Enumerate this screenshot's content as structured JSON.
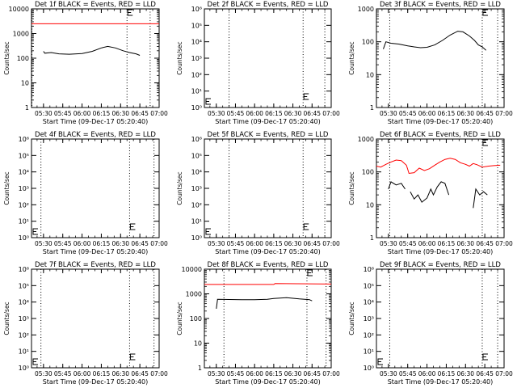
{
  "chart_data": [
    {
      "type": "line",
      "title": "Det 1f BLACK = Events, RED = LLD",
      "xlabel": "Start Time (09-Dec-17 05:20:40)",
      "ylabel": "Counts/sec",
      "xlim": [
        "05:20:40",
        "07:00"
      ],
      "x_ticks": [
        "05:30",
        "05:45",
        "06:00",
        "06:15",
        "06:30",
        "06:45",
        "07:00"
      ],
      "y_scale": "log",
      "ylim": [
        1,
        10000
      ],
      "y_ticks": [
        "1",
        "10",
        "100",
        "1000",
        "10000"
      ],
      "vlines": [
        "05:21",
        "06:35",
        "06:53"
      ],
      "flare_marker": "06:35",
      "grid": false,
      "series": [
        {
          "color": "#000000",
          "points": [
            [
              "05:30",
              190
            ],
            [
              "05:31",
              160
            ],
            [
              "05:36",
              170
            ],
            [
              "05:42",
              150
            ],
            [
              "05:50",
              145
            ],
            [
              "06:00",
              155
            ],
            [
              "06:08",
              190
            ],
            [
              "06:15",
              260
            ],
            [
              "06:20",
              300
            ],
            [
              "06:26",
              260
            ],
            [
              "06:32",
              200
            ],
            [
              "06:37",
              170
            ],
            [
              "06:42",
              150
            ],
            [
              "06:45",
              130
            ]
          ]
        },
        {
          "color": "#ff0000",
          "points": [
            [
              "05:20:40",
              2500
            ],
            [
              "07:00",
              2500
            ]
          ]
        }
      ]
    },
    {
      "type": "line",
      "title": "Det 2f BLACK = Events, RED = LLD",
      "xlabel": "Start Time (09-Dec-17 05:20:40)",
      "ylabel": "Counts/sec",
      "xlim": [
        "05:20:40",
        "07:00"
      ],
      "x_ticks": [
        "05:30",
        "05:45",
        "06:00",
        "06:15",
        "06:30",
        "06:45",
        "07:00"
      ],
      "y_scale": "log",
      "ylim": [
        1,
        1000000
      ],
      "y_ticks": [
        "10⁰",
        "10¹",
        "10²",
        "10³",
        "10⁴",
        "10⁵",
        "10⁶"
      ],
      "vlines": [
        "05:40",
        "06:38",
        "06:55"
      ],
      "flare_marker": "06:38",
      "grid": false,
      "series": []
    },
    {
      "type": "line",
      "title": "Det 3f BLACK = Events, RED = LLD",
      "xlabel": "Start Time (09-Dec-17 05:20:40)",
      "ylabel": "Counts/sec",
      "xlim": [
        "05:20:40",
        "07:00"
      ],
      "x_ticks": [
        "05:30",
        "05:45",
        "06:00",
        "06:15",
        "06:30",
        "06:45",
        "07:00"
      ],
      "y_scale": "log",
      "ylim": [
        1,
        1000
      ],
      "y_ticks": [
        "1",
        "10",
        "100",
        "1000"
      ],
      "vlines": [
        "05:31",
        "06:43",
        "06:55"
      ],
      "flare_marker": "06:43",
      "grid": false,
      "series": [
        {
          "color": "#000000",
          "points": [
            [
              "05:26",
              60
            ],
            [
              "05:28",
              100
            ],
            [
              "05:32",
              90
            ],
            [
              "05:38",
              85
            ],
            [
              "05:45",
              75
            ],
            [
              "05:50",
              70
            ],
            [
              "05:55",
              66
            ],
            [
              "06:00",
              68
            ],
            [
              "06:06",
              80
            ],
            [
              "06:12",
              110
            ],
            [
              "06:18",
              160
            ],
            [
              "06:24",
              210
            ],
            [
              "06:28",
              200
            ],
            [
              "06:33",
              150
            ],
            [
              "06:37",
              110
            ],
            [
              "06:40",
              80
            ],
            [
              "06:43",
              70
            ],
            [
              "06:46",
              55
            ]
          ]
        }
      ]
    },
    {
      "type": "line",
      "title": "Det 4f BLACK = Events, RED = LLD",
      "xlabel": "Start Time (09-Dec-17 05:20:40)",
      "ylabel": "Counts/sec",
      "xlim": [
        "05:20:40",
        "07:00"
      ],
      "x_ticks": [
        "05:30",
        "05:45",
        "06:00",
        "06:15",
        "06:30",
        "06:45",
        "07:00"
      ],
      "y_scale": "log",
      "ylim": [
        1,
        1000000
      ],
      "y_ticks": [
        "10⁰",
        "10¹",
        "10²",
        "10³",
        "10⁴",
        "10⁵",
        "10⁶"
      ],
      "vlines": [
        "05:28",
        "06:37",
        "06:56"
      ],
      "flare_marker": "06:37",
      "grid": false,
      "series": []
    },
    {
      "type": "line",
      "title": "Det 5f BLACK = Events, RED = LLD",
      "xlabel": "Start Time (09-Dec-17 05:20:40)",
      "ylabel": "Counts/sec",
      "xlim": [
        "05:20:40",
        "07:00"
      ],
      "x_ticks": [
        "05:30",
        "05:45",
        "06:00",
        "06:15",
        "06:30",
        "06:45",
        "07:00"
      ],
      "y_scale": "log",
      "ylim": [
        1,
        1000000
      ],
      "y_ticks": [
        "10⁰",
        "10¹",
        "10²",
        "10³",
        "10⁴",
        "10⁵",
        "10⁶"
      ],
      "vlines": [
        "05:40",
        "06:38",
        "06:55"
      ],
      "flare_marker": "06:38",
      "grid": false,
      "series": []
    },
    {
      "type": "line",
      "title": "Det 6f BLACK = Events, RED = LLD",
      "xlabel": "Start Time (09-Dec-17 05:20:40)",
      "ylabel": "Counts/sec",
      "xlim": [
        "05:20:40",
        "07:00"
      ],
      "x_ticks": [
        "05:30",
        "05:45",
        "06:00",
        "06:15",
        "06:30",
        "06:45",
        "07:00"
      ],
      "y_scale": "log",
      "ylim": [
        1,
        1000
      ],
      "y_ticks": [
        "1",
        "10",
        "100",
        "1000"
      ],
      "vlines": [
        "05:31",
        "06:43",
        "06:55"
      ],
      "flare_marker": "06:43",
      "grid": false,
      "series": [
        {
          "color": "#ff0000",
          "points": [
            [
              "05:20:40",
              150
            ],
            [
              "05:24",
              140
            ],
            [
              "05:28",
              170
            ],
            [
              "05:32",
              200
            ],
            [
              "05:36",
              230
            ],
            [
              "05:40",
              220
            ],
            [
              "05:44",
              160
            ],
            [
              "05:46",
              90
            ],
            [
              "05:50",
              95
            ],
            [
              "05:54",
              130
            ],
            [
              "05:58",
              110
            ],
            [
              "06:02",
              125
            ],
            [
              "06:06",
              160
            ],
            [
              "06:10",
              200
            ],
            [
              "06:14",
              240
            ],
            [
              "06:18",
              260
            ],
            [
              "06:22",
              240
            ],
            [
              "06:26",
              190
            ],
            [
              "06:30",
              170
            ],
            [
              "06:33",
              150
            ],
            [
              "06:36",
              180
            ],
            [
              "06:39",
              165
            ],
            [
              "06:43",
              140
            ],
            [
              "06:48",
              150
            ],
            [
              "06:52",
              155
            ],
            [
              "06:57",
              160
            ]
          ]
        },
        {
          "color": "#000000",
          "points": [
            [
              "05:30",
              30
            ],
            [
              "05:32",
              50
            ],
            [
              "05:36",
              40
            ],
            [
              "05:40",
              45
            ],
            [
              "05:43",
              30
            ]
          ]
        },
        {
          "color": "#000000",
          "points": [
            [
              "05:47",
              25
            ],
            [
              "05:50",
              15
            ],
            [
              "05:53",
              20
            ],
            [
              "05:56",
              12
            ],
            [
              "06:00",
              16
            ],
            [
              "06:03",
              30
            ],
            [
              "06:05",
              20
            ],
            [
              "06:08",
              35
            ],
            [
              "06:11",
              50
            ],
            [
              "06:14",
              45
            ],
            [
              "06:17",
              20
            ]
          ]
        },
        {
          "color": "#000000",
          "points": [
            [
              "06:36",
              8
            ],
            [
              "06:38",
              30
            ],
            [
              "06:41",
              20
            ],
            [
              "06:44",
              25
            ],
            [
              "06:47",
              20
            ]
          ]
        }
      ]
    },
    {
      "type": "line",
      "title": "Det 7f BLACK = Events, RED = LLD",
      "xlabel": "Start Time (09-Dec-17 05:20:40)",
      "ylabel": "Counts/sec",
      "xlim": [
        "05:20:40",
        "07:00"
      ],
      "x_ticks": [
        "05:30",
        "05:45",
        "06:00",
        "06:15",
        "06:30",
        "06:45",
        "07:00"
      ],
      "y_scale": "log",
      "ylim": [
        1,
        1000000
      ],
      "y_ticks": [
        "10⁰",
        "10¹",
        "10²",
        "10³",
        "10⁴",
        "10⁵",
        "10⁶"
      ],
      "vlines": [
        "05:28",
        "06:37",
        "06:56"
      ],
      "flare_marker": "06:37",
      "grid": false,
      "series": []
    },
    {
      "type": "line",
      "title": "Det 8f BLACK = Events, RED = LLD",
      "xlabel": "Start Time (09-Dec-17 05:20:40)",
      "ylabel": "Counts/sec",
      "xlim": [
        "05:20:40",
        "07:00"
      ],
      "x_ticks": [
        "05:30",
        "05:45",
        "06:00",
        "06:15",
        "06:30",
        "06:45",
        "07:00"
      ],
      "y_scale": "log",
      "ylim": [
        1,
        10000
      ],
      "y_ticks": [
        "1",
        "10",
        "100",
        "1000",
        "10000"
      ],
      "vlines": [
        "05:36",
        "06:41",
        "06:56"
      ],
      "flare_marker": "06:41",
      "grid": false,
      "series": [
        {
          "color": "#000000",
          "points": [
            [
              "05:30",
              250
            ],
            [
              "05:31",
              600
            ],
            [
              "05:40",
              590
            ],
            [
              "05:50",
              580
            ],
            [
              "06:00",
              580
            ],
            [
              "06:10",
              600
            ],
            [
              "06:15",
              650
            ],
            [
              "06:25",
              700
            ],
            [
              "06:35",
              620
            ],
            [
              "06:43",
              580
            ],
            [
              "06:45",
              520
            ]
          ]
        },
        {
          "color": "#ff0000",
          "points": [
            [
              "05:20:40",
              2400
            ],
            [
              "06:15",
              2400
            ],
            [
              "06:16",
              2600
            ],
            [
              "07:00",
              2500
            ]
          ]
        }
      ]
    },
    {
      "type": "line",
      "title": "Det 9f BLACK = Events, RED = LLD",
      "xlabel": "Start Time (09-Dec-17 05:20:40)",
      "ylabel": "Counts/sec",
      "xlim": [
        "05:20:40",
        "07:00"
      ],
      "x_ticks": [
        "05:30",
        "05:45",
        "06:00",
        "06:15",
        "06:30",
        "06:45",
        "07:00"
      ],
      "y_scale": "log",
      "ylim": [
        1,
        1000000
      ],
      "y_ticks": [
        "10⁰",
        "10¹",
        "10²",
        "10³",
        "10⁴",
        "10⁵",
        "10⁶"
      ],
      "vlines": [
        "05:31",
        "06:43",
        "06:55"
      ],
      "flare_marker": "06:43",
      "grid": false,
      "series": []
    }
  ]
}
